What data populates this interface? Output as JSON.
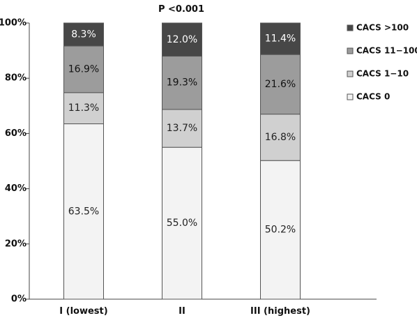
{
  "chart_data": {
    "type": "bar",
    "stacked": true,
    "title": "P <0.001",
    "xlabel": "",
    "ylabel": "",
    "ylim": [
      0,
      100
    ],
    "yticks": [
      "0%",
      "20%",
      "40%",
      "60%",
      "80%",
      "100%"
    ],
    "ytick_values": [
      0,
      20,
      40,
      60,
      80,
      100
    ],
    "categories": [
      "I (lowest)",
      "II",
      "III (highest)"
    ],
    "series": [
      {
        "name": "CACS 0",
        "color": "#f3f3f3",
        "label_color": "#222222",
        "values": [
          63.5,
          55.0,
          50.2
        ],
        "labels": [
          "63.5%",
          "55.0%",
          "50.2%"
        ]
      },
      {
        "name": "CACS 1−10",
        "color": "#d0d0d0",
        "label_color": "#222222",
        "values": [
          11.3,
          13.7,
          16.8
        ],
        "labels": [
          "11.3%",
          "13.7%",
          "16.8%"
        ]
      },
      {
        "name": "CACS 11−100",
        "color": "#9c9c9c",
        "label_color": "#111111",
        "values": [
          16.9,
          19.3,
          21.6
        ],
        "labels": [
          "16.9%",
          "19.3%",
          "21.6%"
        ]
      },
      {
        "name": "CACS >100",
        "color": "#474747",
        "label_color": "#ffffff",
        "values": [
          8.3,
          12.0,
          11.4
        ],
        "labels": [
          "8.3%",
          "12.0%",
          "11.4%"
        ]
      }
    ],
    "legend": {
      "placement": "right",
      "order": [
        "CACS >100",
        "CACS 11−100",
        "CACS 1−10",
        "CACS 0"
      ]
    },
    "grid": false
  }
}
